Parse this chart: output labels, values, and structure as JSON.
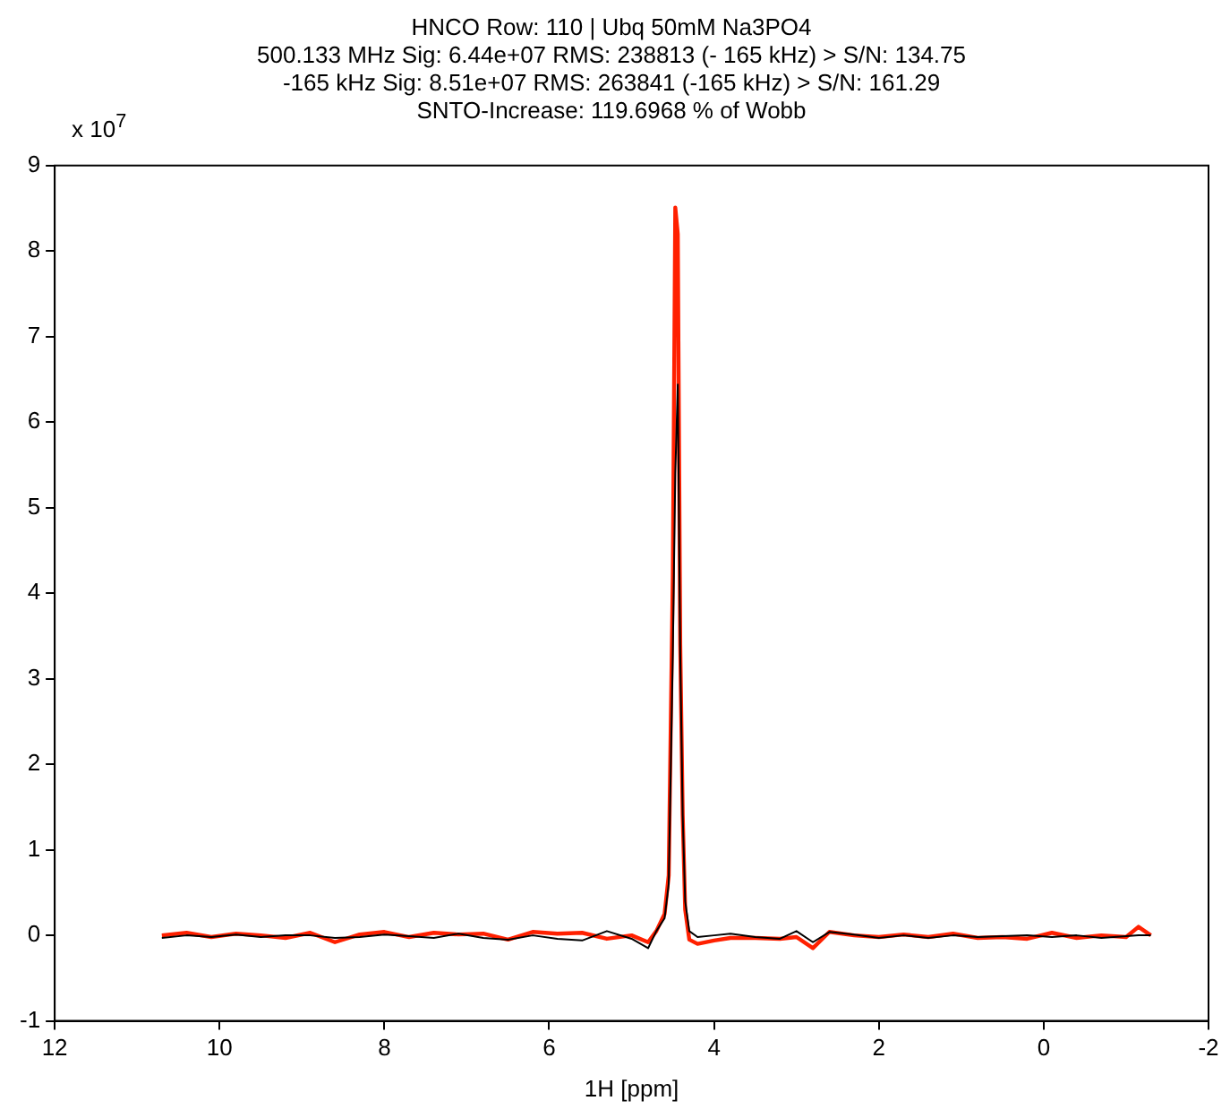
{
  "chart_data": {
    "type": "line",
    "title": "HNCO Row: 110 | Ubq 50mM Na3PO4\n500.133 MHz Sig: 6.44e+07 RMS: 238813 (- 165 kHz) > S/N: 134.75\n-165 kHz Sig: 8.51e+07 RMS: 263841 (-165 kHz) > S/N: 161.29\nSNTO-Increase: 119.6968 % of Wobb",
    "xlabel": "1H [ppm]",
    "annotations": [
      "x 10$^{7}$"
    ],
    "xlim": [
      12,
      -2
    ],
    "xticks": [
      12,
      10,
      8,
      6,
      4,
      2,
      0,
      -2
    ],
    "ylim": [
      -1,
      9
    ],
    "yticks": [
      -1,
      0,
      1,
      2,
      3,
      4,
      5,
      6,
      7,
      8,
      9
    ],
    "grid": false,
    "legend": false,
    "marker": "none",
    "line_style": "solid",
    "series": [
      {
        "color": "#ff2000",
        "x": [
          10.7,
          10.4,
          10.1,
          9.8,
          9.5,
          9.2,
          8.9,
          8.6,
          8.3,
          8.0,
          7.7,
          7.4,
          7.1,
          6.8,
          6.5,
          6.2,
          5.9,
          5.6,
          5.3,
          5.0,
          4.8,
          4.7,
          4.6,
          4.55,
          4.5,
          4.47,
          4.44,
          4.41,
          4.38,
          4.35,
          4.3,
          4.2,
          4.0,
          3.8,
          3.5,
          3.2,
          3.0,
          2.8,
          2.6,
          2.3,
          2.0,
          1.7,
          1.4,
          1.1,
          0.8,
          0.5,
          0.2,
          -0.1,
          -0.4,
          -0.7,
          -1.0,
          -1.15,
          -1.3
        ],
        "values": [
          0.0,
          0.03,
          -0.02,
          0.02,
          0.0,
          -0.03,
          0.03,
          -0.08,
          0.01,
          0.04,
          -0.02,
          0.03,
          0.01,
          0.02,
          -0.05,
          0.04,
          0.02,
          0.03,
          -0.04,
          0.0,
          -0.08,
          0.05,
          0.25,
          0.7,
          4.2,
          8.51,
          8.2,
          3.4,
          1.4,
          0.3,
          -0.05,
          -0.1,
          -0.06,
          -0.03,
          -0.03,
          -0.04,
          -0.02,
          -0.15,
          0.04,
          0.0,
          -0.02,
          0.01,
          -0.02,
          0.02,
          -0.03,
          -0.02,
          -0.04,
          0.03,
          -0.03,
          0.0,
          -0.02,
          0.1,
          0.0
        ]
      },
      {
        "color": "#000000",
        "x": [
          10.7,
          10.4,
          10.1,
          9.8,
          9.5,
          9.2,
          8.9,
          8.6,
          8.3,
          8.0,
          7.7,
          7.4,
          7.1,
          6.8,
          6.5,
          6.2,
          5.9,
          5.6,
          5.3,
          5.0,
          4.8,
          4.7,
          4.6,
          4.55,
          4.5,
          4.47,
          4.44,
          4.41,
          4.38,
          4.35,
          4.3,
          4.2,
          4.0,
          3.8,
          3.5,
          3.2,
          3.0,
          2.8,
          2.6,
          2.3,
          2.0,
          1.7,
          1.4,
          1.1,
          0.8,
          0.5,
          0.2,
          -0.1,
          -0.4,
          -0.7,
          -1.0,
          -1.15,
          -1.3
        ],
        "values": [
          -0.03,
          0.0,
          -0.02,
          0.01,
          -0.02,
          0.0,
          0.0,
          -0.03,
          -0.02,
          0.01,
          -0.01,
          -0.03,
          0.02,
          -0.03,
          -0.05,
          0.0,
          -0.04,
          -0.06,
          0.05,
          -0.04,
          -0.15,
          0.05,
          0.2,
          0.6,
          3.3,
          5.4,
          6.44,
          3.3,
          1.4,
          0.4,
          0.05,
          -0.02,
          0.0,
          0.02,
          -0.02,
          -0.04,
          0.05,
          -0.08,
          0.04,
          0.01,
          -0.03,
          0.0,
          -0.03,
          0.0,
          -0.02,
          -0.01,
          0.0,
          -0.02,
          0.0,
          -0.03,
          -0.01,
          0.0,
          0.0
        ]
      }
    ]
  }
}
